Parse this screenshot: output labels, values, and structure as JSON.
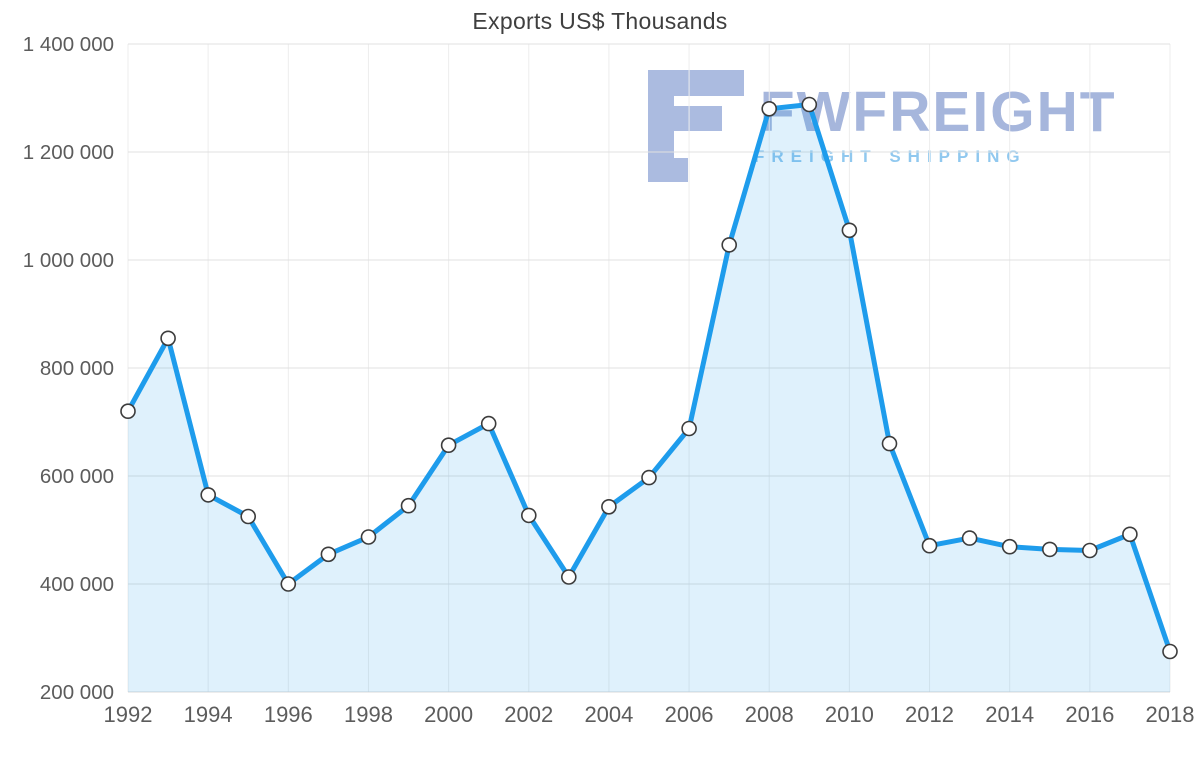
{
  "page": {
    "title": "Exports US$ Thousands"
  },
  "watermark": {
    "brand": "FWFREIGHT",
    "tagline": "FREIGHT SHIPPING",
    "brand_color": "#9fb0da",
    "tagline_color": "#87c4ee",
    "glyph_color": "#95a9d7"
  },
  "chart_data": {
    "type": "area",
    "title": "Exports US$ Thousands",
    "xlabel": "",
    "ylabel": "",
    "x": [
      1992,
      1993,
      1994,
      1995,
      1996,
      1997,
      1998,
      1999,
      2000,
      2001,
      2002,
      2003,
      2004,
      2005,
      2006,
      2007,
      2008,
      2009,
      2010,
      2011,
      2012,
      2013,
      2014,
      2015,
      2016,
      2017,
      2018
    ],
    "values": [
      720000,
      855000,
      565000,
      525000,
      400000,
      455000,
      487000,
      545000,
      657000,
      697000,
      527000,
      413000,
      543000,
      597000,
      688000,
      1028000,
      1280000,
      1288000,
      1055000,
      660000,
      471000,
      485000,
      469000,
      464000,
      462000,
      492000,
      275000
    ],
    "xlim": [
      1992,
      2018
    ],
    "ylim": [
      200000,
      1400000
    ],
    "x_ticks": [
      1992,
      1994,
      1996,
      1998,
      2000,
      2002,
      2004,
      2006,
      2008,
      2010,
      2012,
      2014,
      2016,
      2018
    ],
    "x_tick_labels": [
      "1992",
      "1994",
      "1996",
      "1998",
      "2000",
      "2002",
      "2004",
      "2006",
      "2008",
      "2010",
      "2012",
      "2014",
      "2016",
      "2018"
    ],
    "y_ticks": [
      200000,
      400000,
      600000,
      800000,
      1000000,
      1200000,
      1400000
    ],
    "y_tick_labels": [
      "200 000",
      "400 000",
      "600 000",
      "800 000",
      "1 000 000",
      "1 200 000",
      "1 400 000"
    ],
    "grid": "horizontal-and-vertical",
    "legend": "none",
    "colors": {
      "line": "#1e9cec",
      "fill": "rgba(30, 156, 236, 0.14)",
      "hgrid": "#e0e0e0",
      "vgrid": "#ededed",
      "axis_text": "#5c5c5c",
      "marker_fill": "#fefefe",
      "marker_stroke": "#3c3c3c"
    }
  }
}
